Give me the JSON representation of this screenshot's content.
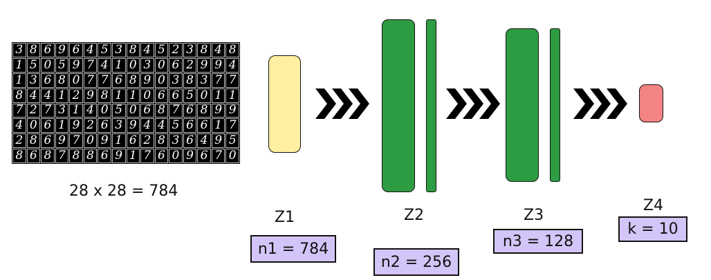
{
  "colors": {
    "z1": "#FFEFA0",
    "z2": "#2E9C42",
    "z3": "#2E9C42",
    "z4": "#F48383",
    "unit_box": "#D3C5F7",
    "arrow": "#000000"
  },
  "input": {
    "digits": [
      "3869645384523848",
      "1505974103062994",
      "1368077689038377",
      "8441298110665011",
      "7273140506876899",
      "4061926394456617",
      "2869709162836495",
      "8687886917609670"
    ],
    "caption": "28 x 28 = 784"
  },
  "layers": {
    "z1": {
      "label": "Z1",
      "units": "n1 = 784"
    },
    "z2": {
      "label": "Z2",
      "units": "n2 = 256"
    },
    "z3": {
      "label": "Z3",
      "units": "n3 = 128"
    },
    "z4": {
      "label": "Z4",
      "units": "k = 10"
    }
  }
}
